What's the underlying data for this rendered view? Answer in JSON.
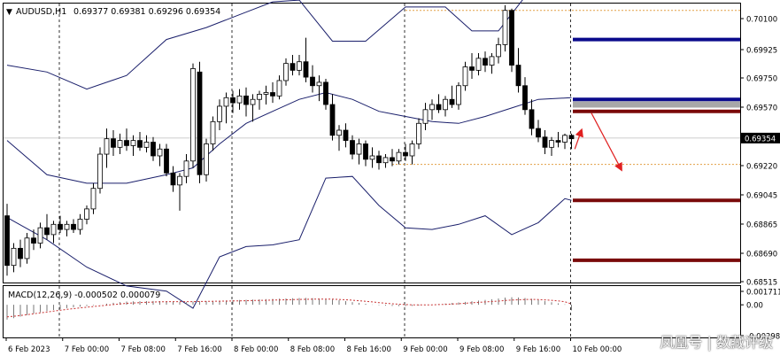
{
  "header": {
    "symbol": "AUDUSD,H1",
    "ohlc": "0.69377 0.69381 0.69296 0.69354"
  },
  "macd_panel": {
    "label": "MACD(12,26,9) -0.000502 0.000079"
  },
  "watermark": "凤凰号 | 数藏评级",
  "colors": {
    "candle": "#000000",
    "bollinger": "#1a1f6b",
    "support_resistance_blue": "#0a0a8c",
    "support_resistance_red": "#7a0a0a",
    "dotted_level": "#e3a046",
    "arrow": "#e02020",
    "macd_signal": "#c83232",
    "current_price_tag": "#000000"
  },
  "chart_data": [
    {
      "type": "candlestick",
      "title": "",
      "symbol": "AUDUSD",
      "timeframe": "H1",
      "y_unit": "price",
      "ylim": [
        0.6851,
        0.7014
      ],
      "price_ticks": [
        "0.70100",
        "0.69925",
        "0.69750",
        "0.69570",
        "0.69395",
        "0.69220",
        "0.69045",
        "0.68865",
        "0.68690",
        "0.68515"
      ],
      "current_price": "0.69354",
      "x_ticks": [
        "6 Feb 2023",
        "7 Feb 00:00",
        "7 Feb 08:00",
        "7 Feb 16:00",
        "8 Feb 00:00",
        "8 Feb 08:00",
        "8 Feb 16:00",
        "9 Feb 00:00",
        "9 Feb 08:00",
        "9 Feb 16:00",
        "10 Feb 00:00"
      ],
      "candles": [
        {
          "o": 0.689,
          "h": 0.6897,
          "l": 0.6855,
          "c": 0.6861
        },
        {
          "o": 0.6861,
          "h": 0.6874,
          "l": 0.6857,
          "c": 0.6871
        },
        {
          "o": 0.6871,
          "h": 0.6876,
          "l": 0.686,
          "c": 0.6865
        },
        {
          "o": 0.6865,
          "h": 0.688,
          "l": 0.6862,
          "c": 0.6877
        },
        {
          "o": 0.6877,
          "h": 0.6882,
          "l": 0.687,
          "c": 0.6874
        },
        {
          "o": 0.6874,
          "h": 0.6886,
          "l": 0.6871,
          "c": 0.6883
        },
        {
          "o": 0.6883,
          "h": 0.6891,
          "l": 0.6876,
          "c": 0.6879
        },
        {
          "o": 0.6879,
          "h": 0.6887,
          "l": 0.6874,
          "c": 0.6885
        },
        {
          "o": 0.6885,
          "h": 0.689,
          "l": 0.688,
          "c": 0.6882
        },
        {
          "o": 0.6882,
          "h": 0.6887,
          "l": 0.6878,
          "c": 0.6885
        },
        {
          "o": 0.6885,
          "h": 0.6888,
          "l": 0.688,
          "c": 0.6882
        },
        {
          "o": 0.6882,
          "h": 0.6891,
          "l": 0.6879,
          "c": 0.6888
        },
        {
          "o": 0.6888,
          "h": 0.6896,
          "l": 0.6885,
          "c": 0.6894
        },
        {
          "o": 0.6894,
          "h": 0.6909,
          "l": 0.6891,
          "c": 0.6906
        },
        {
          "o": 0.6906,
          "h": 0.693,
          "l": 0.6903,
          "c": 0.6926
        },
        {
          "o": 0.6926,
          "h": 0.6941,
          "l": 0.6918,
          "c": 0.6935
        },
        {
          "o": 0.6935,
          "h": 0.694,
          "l": 0.6925,
          "c": 0.693
        },
        {
          "o": 0.693,
          "h": 0.6938,
          "l": 0.6926,
          "c": 0.6934
        },
        {
          "o": 0.6934,
          "h": 0.6941,
          "l": 0.6928,
          "c": 0.6931
        },
        {
          "o": 0.6931,
          "h": 0.6937,
          "l": 0.6925,
          "c": 0.6934
        },
        {
          "o": 0.6934,
          "h": 0.6939,
          "l": 0.6928,
          "c": 0.693
        },
        {
          "o": 0.693,
          "h": 0.6937,
          "l": 0.6927,
          "c": 0.6933
        },
        {
          "o": 0.6933,
          "h": 0.6936,
          "l": 0.6922,
          "c": 0.6925
        },
        {
          "o": 0.6925,
          "h": 0.6932,
          "l": 0.6919,
          "c": 0.6929
        },
        {
          "o": 0.6929,
          "h": 0.6932,
          "l": 0.6913,
          "c": 0.6915
        },
        {
          "o": 0.6915,
          "h": 0.6919,
          "l": 0.6904,
          "c": 0.6908
        },
        {
          "o": 0.6908,
          "h": 0.6915,
          "l": 0.6893,
          "c": 0.6913
        },
        {
          "o": 0.6913,
          "h": 0.6926,
          "l": 0.6909,
          "c": 0.6922
        },
        {
          "o": 0.6922,
          "h": 0.6979,
          "l": 0.6918,
          "c": 0.6976
        },
        {
          "o": 0.6974,
          "h": 0.698,
          "l": 0.6909,
          "c": 0.6914
        },
        {
          "o": 0.6914,
          "h": 0.6935,
          "l": 0.691,
          "c": 0.6932
        },
        {
          "o": 0.6932,
          "h": 0.6948,
          "l": 0.6928,
          "c": 0.6945
        },
        {
          "o": 0.6945,
          "h": 0.6958,
          "l": 0.694,
          "c": 0.6954
        },
        {
          "o": 0.6954,
          "h": 0.6962,
          "l": 0.6944,
          "c": 0.6959
        },
        {
          "o": 0.6959,
          "h": 0.6963,
          "l": 0.695,
          "c": 0.6956
        },
        {
          "o": 0.6956,
          "h": 0.6964,
          "l": 0.6952,
          "c": 0.696
        },
        {
          "o": 0.696,
          "h": 0.6965,
          "l": 0.6948,
          "c": 0.6955
        },
        {
          "o": 0.6955,
          "h": 0.6961,
          "l": 0.6945,
          "c": 0.6958
        },
        {
          "o": 0.6958,
          "h": 0.6963,
          "l": 0.6952,
          "c": 0.6961
        },
        {
          "o": 0.6961,
          "h": 0.6966,
          "l": 0.6955,
          "c": 0.6962
        },
        {
          "o": 0.6962,
          "h": 0.6968,
          "l": 0.6956,
          "c": 0.696
        },
        {
          "o": 0.696,
          "h": 0.6972,
          "l": 0.6958,
          "c": 0.6969
        },
        {
          "o": 0.6969,
          "h": 0.6982,
          "l": 0.6966,
          "c": 0.6979
        },
        {
          "o": 0.6979,
          "h": 0.6984,
          "l": 0.6972,
          "c": 0.6975
        },
        {
          "o": 0.6975,
          "h": 0.6984,
          "l": 0.6972,
          "c": 0.698
        },
        {
          "o": 0.698,
          "h": 0.6994,
          "l": 0.6968,
          "c": 0.6971
        },
        {
          "o": 0.6971,
          "h": 0.6978,
          "l": 0.6962,
          "c": 0.6966
        },
        {
          "o": 0.6966,
          "h": 0.6972,
          "l": 0.6957,
          "c": 0.6968
        },
        {
          "o": 0.6968,
          "h": 0.697,
          "l": 0.6952,
          "c": 0.6955
        },
        {
          "o": 0.6955,
          "h": 0.6961,
          "l": 0.6934,
          "c": 0.6937
        },
        {
          "o": 0.6937,
          "h": 0.6943,
          "l": 0.6928,
          "c": 0.694
        },
        {
          "o": 0.694,
          "h": 0.6944,
          "l": 0.693,
          "c": 0.6934
        },
        {
          "o": 0.6934,
          "h": 0.6937,
          "l": 0.6923,
          "c": 0.6926
        },
        {
          "o": 0.6926,
          "h": 0.6935,
          "l": 0.692,
          "c": 0.6932
        },
        {
          "o": 0.6932,
          "h": 0.6934,
          "l": 0.6919,
          "c": 0.6923
        },
        {
          "o": 0.6923,
          "h": 0.693,
          "l": 0.6918,
          "c": 0.6925
        },
        {
          "o": 0.6925,
          "h": 0.6928,
          "l": 0.6917,
          "c": 0.6921
        },
        {
          "o": 0.6921,
          "h": 0.6926,
          "l": 0.6918,
          "c": 0.6924
        },
        {
          "o": 0.6924,
          "h": 0.6929,
          "l": 0.6919,
          "c": 0.6922
        },
        {
          "o": 0.6922,
          "h": 0.6929,
          "l": 0.692,
          "c": 0.6927
        },
        {
          "o": 0.6927,
          "h": 0.6932,
          "l": 0.6922,
          "c": 0.6925
        },
        {
          "o": 0.6925,
          "h": 0.6934,
          "l": 0.692,
          "c": 0.6932
        },
        {
          "o": 0.6932,
          "h": 0.6947,
          "l": 0.6929,
          "c": 0.6944
        },
        {
          "o": 0.6944,
          "h": 0.6956,
          "l": 0.694,
          "c": 0.6952
        },
        {
          "o": 0.6952,
          "h": 0.6958,
          "l": 0.6946,
          "c": 0.6955
        },
        {
          "o": 0.6955,
          "h": 0.6961,
          "l": 0.695,
          "c": 0.6952
        },
        {
          "o": 0.6952,
          "h": 0.696,
          "l": 0.6948,
          "c": 0.6958
        },
        {
          "o": 0.6958,
          "h": 0.6966,
          "l": 0.6953,
          "c": 0.6955
        },
        {
          "o": 0.6955,
          "h": 0.6968,
          "l": 0.6952,
          "c": 0.6966
        },
        {
          "o": 0.6966,
          "h": 0.698,
          "l": 0.6963,
          "c": 0.6977
        },
        {
          "o": 0.6977,
          "h": 0.6985,
          "l": 0.697,
          "c": 0.6975
        },
        {
          "o": 0.6975,
          "h": 0.6985,
          "l": 0.6972,
          "c": 0.6982
        },
        {
          "o": 0.6982,
          "h": 0.6986,
          "l": 0.6974,
          "c": 0.6978
        },
        {
          "o": 0.6978,
          "h": 0.6985,
          "l": 0.6973,
          "c": 0.6983
        },
        {
          "o": 0.6983,
          "h": 0.6994,
          "l": 0.6979,
          "c": 0.699
        },
        {
          "o": 0.699,
          "h": 0.7013,
          "l": 0.6986,
          "c": 0.701
        },
        {
          "o": 0.701,
          "h": 0.7011,
          "l": 0.6974,
          "c": 0.6978
        },
        {
          "o": 0.6978,
          "h": 0.6988,
          "l": 0.6962,
          "c": 0.6966
        },
        {
          "o": 0.6966,
          "h": 0.6971,
          "l": 0.6949,
          "c": 0.6952
        },
        {
          "o": 0.6952,
          "h": 0.6958,
          "l": 0.6937,
          "c": 0.6941
        },
        {
          "o": 0.6941,
          "h": 0.6946,
          "l": 0.6933,
          "c": 0.6936
        },
        {
          "o": 0.6936,
          "h": 0.694,
          "l": 0.6926,
          "c": 0.693
        },
        {
          "o": 0.693,
          "h": 0.6936,
          "l": 0.6925,
          "c": 0.6934
        },
        {
          "o": 0.6934,
          "h": 0.6939,
          "l": 0.693,
          "c": 0.6933
        },
        {
          "o": 0.6933,
          "h": 0.6938,
          "l": 0.6929,
          "c": 0.6937
        },
        {
          "o": 0.6937,
          "h": 0.6938,
          "l": 0.6929,
          "c": 0.6935
        }
      ],
      "bollinger": {
        "upper": [
          [
            0,
            0.6978
          ],
          [
            6,
            0.6974
          ],
          [
            12,
            0.6964
          ],
          [
            18,
            0.6972
          ],
          [
            24,
            0.6993
          ],
          [
            30,
            0.7
          ],
          [
            36,
            0.7009
          ],
          [
            40,
            0.7015
          ],
          [
            44,
            0.7016
          ],
          [
            49,
            0.6992
          ],
          [
            54,
            0.6992
          ],
          [
            60,
            0.7012
          ],
          [
            66,
            0.7012
          ],
          [
            70,
            0.6998
          ],
          [
            74,
            0.6998
          ],
          [
            78,
            0.7018
          ]
        ],
        "middle": [
          [
            0,
            0.6934
          ],
          [
            6,
            0.6914
          ],
          [
            12,
            0.6909
          ],
          [
            18,
            0.6909
          ],
          [
            24,
            0.6914
          ],
          [
            28,
            0.6918
          ],
          [
            32,
            0.6932
          ],
          [
            36,
            0.6944
          ],
          [
            40,
            0.6951
          ],
          [
            44,
            0.6958
          ],
          [
            48,
            0.6962
          ],
          [
            52,
            0.6958
          ],
          [
            56,
            0.6951
          ],
          [
            60,
            0.6948
          ],
          [
            64,
            0.6945
          ],
          [
            68,
            0.6944
          ],
          [
            72,
            0.6948
          ],
          [
            76,
            0.6953
          ],
          [
            80,
            0.6958
          ],
          [
            85,
            0.6959
          ]
        ],
        "lower": [
          [
            0,
            0.6889
          ],
          [
            6,
            0.6876
          ],
          [
            12,
            0.686
          ],
          [
            18,
            0.6849
          ],
          [
            24,
            0.6846
          ],
          [
            28,
            0.6836
          ],
          [
            32,
            0.6866
          ],
          [
            36,
            0.6872
          ],
          [
            40,
            0.6873
          ],
          [
            44,
            0.6876
          ],
          [
            48,
            0.6912
          ],
          [
            52,
            0.6913
          ],
          [
            56,
            0.6896
          ],
          [
            60,
            0.6883
          ],
          [
            64,
            0.6882
          ],
          [
            68,
            0.6885
          ],
          [
            72,
            0.689
          ],
          [
            76,
            0.6879
          ],
          [
            80,
            0.6886
          ],
          [
            84,
            0.69
          ],
          [
            85,
            0.6899
          ]
        ]
      },
      "levels": [
        {
          "price": 0.6993,
          "kind": "resistance",
          "color": "blue"
        },
        {
          "price": 0.6958,
          "kind": "resistance",
          "color": "blue"
        },
        {
          "price": 0.6955,
          "kind": "zone",
          "color": "gray"
        },
        {
          "price": 0.6951,
          "kind": "resistance",
          "color": "red"
        },
        {
          "price": 0.6899,
          "kind": "support",
          "color": "red"
        },
        {
          "price": 0.6864,
          "kind": "support",
          "color": "red"
        }
      ],
      "dotted_levels": [
        0.701,
        0.692
      ],
      "projection": [
        {
          "from": [
            85.5,
            0.6929
          ],
          "to": [
            86.5,
            0.694
          ]
        },
        {
          "from": [
            88.0,
            0.695
          ],
          "to": [
            92.5,
            0.6917
          ]
        }
      ]
    },
    {
      "type": "bar",
      "title": "MACD(12,26,9)",
      "macd": -0.000502,
      "signal": 7.9e-05,
      "ylim": [
        -0.00298,
        0.001711
      ],
      "y_ticks": [
        "0.001711",
        "0.00",
        "-0.002980"
      ],
      "histogram": [
        -0.00135,
        -0.00122,
        -0.00108,
        -0.00094,
        -0.0008,
        -0.00068,
        -0.00057,
        -0.00047,
        -0.00038,
        -0.0003,
        -0.00023,
        -0.00017,
        -0.00011,
        -5e-05,
        2e-05,
        0.0001,
        0.00018,
        0.00025,
        0.0003,
        0.00032,
        0.00033,
        0.00034,
        0.00035,
        0.00034,
        0.00032,
        0.00029,
        0.00026,
        0.00024,
        0.0003,
        0.00033,
        0.00034,
        0.00036,
        0.00038,
        0.0004,
        0.00042,
        0.00044,
        0.00046,
        0.00048,
        0.0005,
        0.00052,
        0.00054,
        0.00056,
        0.00058,
        0.0006,
        0.00062,
        0.00063,
        0.00061,
        0.00058,
        0.00054,
        0.00049,
        0.00042,
        0.00034,
        0.00025,
        0.00017,
        9e-05,
        2e-05,
        -4e-05,
        -8e-05,
        -0.00011,
        -0.00012,
        -0.00012,
        -0.0001,
        -7e-05,
        -3e-05,
        1e-05,
        6e-05,
        0.00011,
        0.00016,
        0.00021,
        0.00027,
        0.00033,
        0.00039,
        0.00045,
        0.00051,
        0.00058,
        0.00066,
        0.00069,
        0.00067,
        0.00062,
        0.00055,
        0.00046,
        0.00035,
        0.00024,
        0.00013,
        4e-05,
        -0.0005
      ],
      "signal_line": [
        -0.0011,
        -0.00105,
        -0.00098,
        -0.0009,
        -0.00082,
        -0.00074,
        -0.00066,
        -0.00058,
        -0.0005,
        -0.00042,
        -0.00035,
        -0.00028,
        -0.00022,
        -0.00016,
        -0.0001,
        -4e-05,
        2e-05,
        8e-05,
        0.00013,
        0.00017,
        0.0002,
        0.00023,
        0.00025,
        0.00027,
        0.00028,
        0.00029,
        0.00029,
        0.00029,
        0.00029,
        0.0003,
        0.00031,
        0.00032,
        0.00033,
        0.00034,
        0.00035,
        0.00036,
        0.00037,
        0.00039,
        0.0004,
        0.00041,
        0.00043,
        0.00044,
        0.00046,
        0.00047,
        0.00049,
        0.0005,
        0.00051,
        0.00052,
        0.00052,
        0.00051,
        0.00049,
        0.00046,
        0.00042,
        0.00037,
        0.00032,
        0.00026,
        0.0002,
        0.00014,
        9e-05,
        5e-05,
        2e-05,
        0.0,
        -1e-05,
        -1e-05,
        0.0,
        2e-05,
        4e-05,
        7e-05,
        0.0001,
        0.00014,
        0.00018,
        0.00022,
        0.00026,
        0.0003,
        0.00034,
        0.00039,
        0.00043,
        0.00046,
        0.00048,
        0.00049,
        0.00048,
        0.00045,
        0.00041,
        0.00035,
        0.00028,
        8e-05
      ]
    }
  ]
}
